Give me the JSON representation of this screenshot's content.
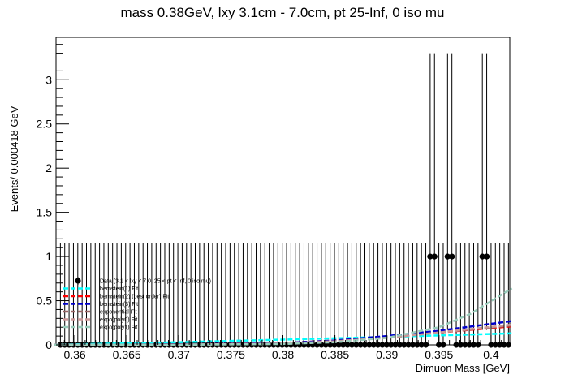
{
  "chart_data": {
    "type": "scatter",
    "title": "mass 0.38GeV, lxy 3.1cm - 7.0cm, pt 25-Inf, 0 iso mu",
    "xlabel": "Dimuon Mass [GeV]",
    "ylabel": "Events/ 0.000418 GeV",
    "xlim": [
      0.3582,
      0.4018
    ],
    "ylim": [
      0,
      3.48
    ],
    "x_ticks": [
      "0.36",
      "0.365",
      "0.37",
      "0.375",
      "0.38",
      "0.385",
      "0.39",
      "0.395",
      "0.4"
    ],
    "y_ticks": [
      "0",
      "0.5",
      "1",
      "1.5",
      "2",
      "2.5",
      "3"
    ],
    "grid": false,
    "legend_position": "left",
    "data_series": {
      "name": "Data (3.1 < lxy < 7.0, 25 < pt < Inf, 0 iso mu)",
      "bin_width": 0.000418,
      "x_start": 0.358409,
      "n_bins": 104,
      "points": [
        {
          "x": 0.39425,
          "y": 1,
          "err_low": 0.83,
          "err_high": 2.3
        },
        {
          "x": 0.39467,
          "y": 1,
          "err_low": 0.83,
          "err_high": 2.3
        },
        {
          "x": 0.39592,
          "y": 1,
          "err_low": 0.83,
          "err_high": 2.3
        },
        {
          "x": 0.39634,
          "y": 1,
          "err_low": 0.83,
          "err_high": 2.3
        },
        {
          "x": 0.39927,
          "y": 1,
          "err_low": 0.83,
          "err_high": 2.3
        },
        {
          "x": 0.39969,
          "y": 1,
          "err_low": 0.83,
          "err_high": 2.3
        }
      ],
      "zero_err_high": 1.15
    },
    "series": [
      {
        "name": "bernstein(1) Fit",
        "color": "#00ffff",
        "x": [
          0.358,
          0.37,
          0.38,
          0.39,
          0.402
        ],
        "y": [
          0.002,
          0.03,
          0.06,
          0.09,
          0.13
        ]
      },
      {
        "name": "bernstein(2) (best order) Fit",
        "color": "#ff0000",
        "x": [
          0.358,
          0.37,
          0.38,
          0.385,
          0.39,
          0.395,
          0.402
        ],
        "y": [
          0,
          0.005,
          0.02,
          0.05,
          0.09,
          0.14,
          0.21
        ]
      },
      {
        "name": "bernstein(3) Fit",
        "color": "#0000cc",
        "x": [
          0.358,
          0.37,
          0.38,
          0.385,
          0.39,
          0.395,
          0.402
        ],
        "y": [
          0,
          0.005,
          0.02,
          0.05,
          0.1,
          0.16,
          0.27
        ]
      },
      {
        "name": "exponential Fit",
        "color": "#996666",
        "x": [
          0.358,
          0.37,
          0.38,
          0.385,
          0.39,
          0.395,
          0.402
        ],
        "y": [
          0,
          0.003,
          0.015,
          0.04,
          0.08,
          0.14,
          0.22
        ]
      },
      {
        "name": "expo(poly0) Fit",
        "color": "#cc9999",
        "x": [
          0.358,
          0.37,
          0.38,
          0.385,
          0.39,
          0.395,
          0.402
        ],
        "y": [
          0,
          0.003,
          0.015,
          0.04,
          0.08,
          0.14,
          0.23
        ]
      },
      {
        "name": "expo(poly1) Fit",
        "color": "#99ccbb",
        "x": [
          0.358,
          0.37,
          0.38,
          0.385,
          0.39,
          0.395,
          0.398,
          0.402
        ],
        "y": [
          0,
          0.001,
          0.01,
          0.03,
          0.08,
          0.2,
          0.35,
          0.64
        ]
      }
    ]
  }
}
